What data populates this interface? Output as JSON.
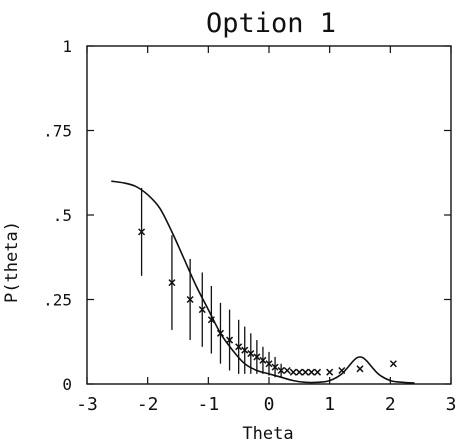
{
  "chart_data": {
    "type": "line",
    "title": "Option 1",
    "xlabel": "Theta",
    "ylabel": "P(theta)",
    "xlim": [
      -3,
      3
    ],
    "ylim": [
      0,
      1
    ],
    "x_ticks": [
      {
        "v": -3,
        "label": "-3"
      },
      {
        "v": -2,
        "label": "-2"
      },
      {
        "v": -1,
        "label": "-1"
      },
      {
        "v": 0,
        "label": "0"
      },
      {
        "v": 1,
        "label": "1"
      },
      {
        "v": 2,
        "label": "2"
      },
      {
        "v": 3,
        "label": "3"
      }
    ],
    "y_ticks": [
      {
        "v": 0,
        "label": "0"
      },
      {
        "v": 0.25,
        "label": ".25"
      },
      {
        "v": 0.5,
        "label": ".5"
      },
      {
        "v": 0.75,
        "label": ".75"
      },
      {
        "v": 1,
        "label": "1"
      }
    ],
    "grid": false,
    "curve": {
      "x": [
        -2.6,
        -2.4,
        -2.2,
        -2.0,
        -1.8,
        -1.6,
        -1.4,
        -1.2,
        -1.0,
        -0.8,
        -0.6,
        -0.4,
        -0.2,
        0.0,
        0.2,
        0.4,
        0.6,
        0.8,
        1.0,
        1.2,
        1.4,
        1.5,
        1.6,
        1.8,
        2.0,
        2.2,
        2.4
      ],
      "y": [
        0.6,
        0.595,
        0.585,
        0.56,
        0.52,
        0.45,
        0.37,
        0.29,
        0.22,
        0.15,
        0.1,
        0.06,
        0.04,
        0.03,
        0.02,
        0.01,
        0.005,
        0.005,
        0.01,
        0.03,
        0.07,
        0.08,
        0.07,
        0.03,
        0.01,
        0.005,
        0.003
      ]
    },
    "observed": {
      "x": [
        -2.1,
        -1.6,
        -1.3,
        -1.1,
        -0.95,
        -0.8,
        -0.65,
        -0.5,
        -0.4,
        -0.3,
        -0.2,
        -0.1,
        0.0,
        0.1,
        0.2,
        0.3,
        0.4,
        0.5,
        0.6,
        0.7,
        0.8,
        1.0,
        1.2,
        1.5,
        2.05
      ],
      "y": [
        0.45,
        0.3,
        0.25,
        0.22,
        0.19,
        0.15,
        0.13,
        0.11,
        0.1,
        0.09,
        0.08,
        0.07,
        0.06,
        0.05,
        0.04,
        0.04,
        0.035,
        0.035,
        0.035,
        0.035,
        0.035,
        0.035,
        0.04,
        0.045,
        0.06
      ],
      "err": [
        0.13,
        0.14,
        0.12,
        0.11,
        0.1,
        0.09,
        0.09,
        0.08,
        0.07,
        0.06,
        0.05,
        0.04,
        0.035,
        0.03,
        0.02,
        0,
        0,
        0,
        0,
        0,
        0,
        0,
        0,
        0,
        0
      ]
    }
  }
}
